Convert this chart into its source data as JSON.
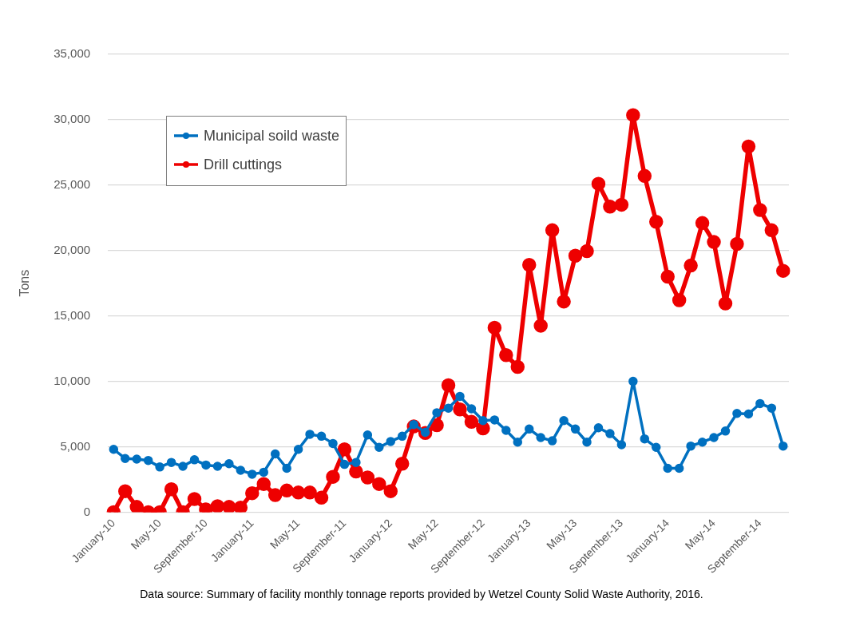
{
  "chart_data": {
    "type": "line",
    "ylabel": "Tons",
    "categories": [
      "January-10",
      null,
      null,
      null,
      "May-10",
      null,
      null,
      null,
      "September-10",
      null,
      null,
      null,
      "January-11",
      null,
      null,
      null,
      "May-11",
      null,
      null,
      null,
      "September-11",
      null,
      null,
      null,
      "January-12",
      null,
      null,
      null,
      "May-12",
      null,
      null,
      null,
      "September-12",
      null,
      null,
      null,
      "January-13",
      null,
      null,
      null,
      "May-13",
      null,
      null,
      null,
      "September-13",
      null,
      null,
      null,
      "January-14",
      null,
      null,
      null,
      "May-14",
      null,
      null,
      null,
      "September-14",
      null,
      null
    ],
    "series": [
      {
        "name": "Municipal soild waste",
        "color": "#0070c0",
        "values": [
          4800,
          4100,
          4050,
          3950,
          3450,
          3800,
          3500,
          4000,
          3600,
          3500,
          3700,
          3200,
          2900,
          3050,
          4450,
          3350,
          4800,
          5950,
          5800,
          5250,
          3650,
          3800,
          5900,
          4950,
          5400,
          5800,
          6700,
          6100,
          7600,
          7950,
          8850,
          7900,
          7000,
          7050,
          6250,
          5350,
          6350,
          5700,
          5450,
          7000,
          6350,
          5350,
          6450,
          6000,
          5150,
          10000,
          5600,
          4950,
          3350,
          3350,
          5050,
          5350,
          5700,
          6200,
          7550,
          7500,
          8300,
          7950,
          5050
        ]
      },
      {
        "name": "Drill cuttings",
        "color": "#ee0000",
        "values": [
          0,
          1600,
          400,
          0,
          0,
          1750,
          0,
          1000,
          200,
          450,
          400,
          350,
          1450,
          2150,
          1300,
          1650,
          1500,
          1500,
          1100,
          2700,
          4800,
          3100,
          2650,
          2150,
          1600,
          3700,
          6550,
          6050,
          6650,
          9700,
          7850,
          6900,
          6400,
          14100,
          12000,
          11100,
          18900,
          14250,
          21550,
          16100,
          19600,
          19950,
          25100,
          23350,
          23500,
          30350,
          25700,
          22200,
          18000,
          16200,
          18850,
          22100,
          20650,
          15950,
          20500,
          27950,
          23100,
          21550,
          18450
        ]
      }
    ],
    "ylim": [
      0,
      35000
    ],
    "yticks": [
      0,
      {
        "value": 5000,
        "label": "5,000"
      },
      {
        "value": 10000,
        "label": "10,000"
      },
      {
        "value": 15000,
        "label": "15,000"
      },
      {
        "value": 20000,
        "label": "20,000"
      },
      {
        "value": 25000,
        "label": "25,000"
      },
      {
        "value": 30000,
        "label": "30,000"
      },
      {
        "value": 35000,
        "label": "35,000"
      }
    ],
    "grid": "y",
    "legend": "top left",
    "marker": "circle",
    "line_style": "solid",
    "annotations": [
      "Data source: Summary of facility monthly tonnage reports provided by Wetzel County Solid Waste Authority, 2016."
    ]
  }
}
